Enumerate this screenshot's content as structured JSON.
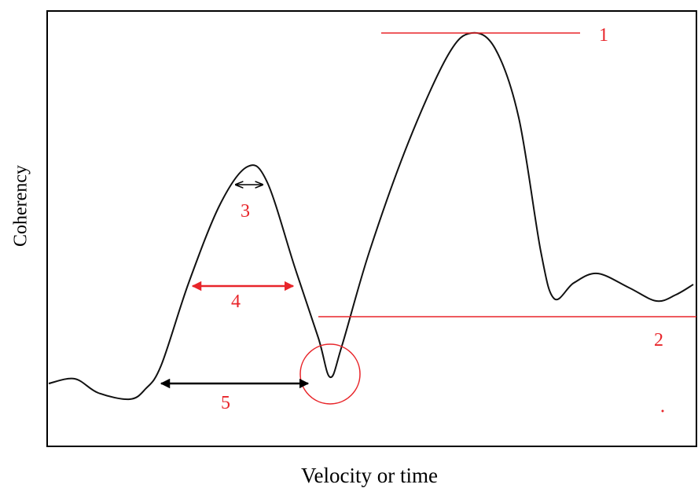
{
  "axes": {
    "y_label": "Coherency",
    "x_label": "Velocity or time"
  },
  "annotations": [
    "1",
    "2",
    "3",
    "4",
    "5"
  ]
}
